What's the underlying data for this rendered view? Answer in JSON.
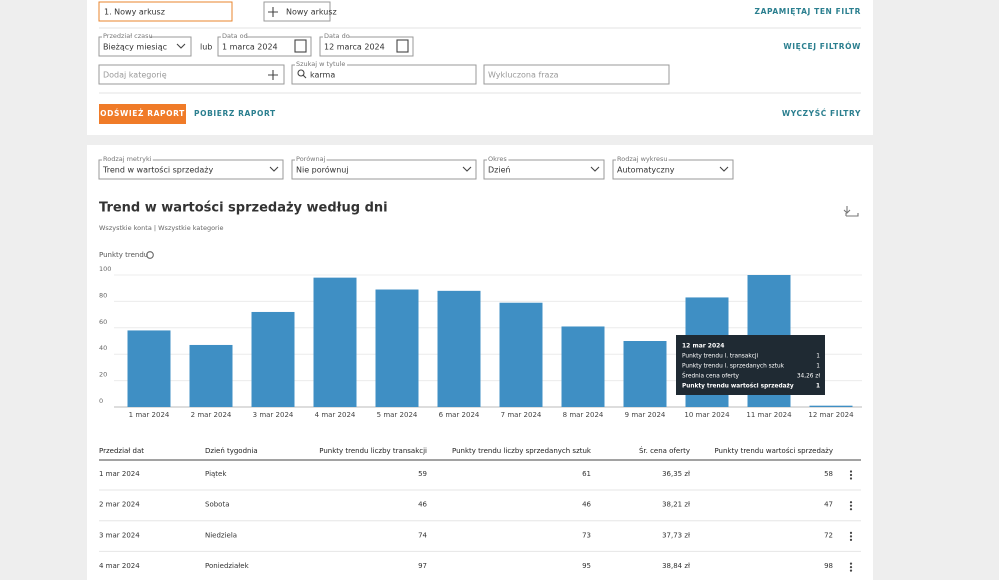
{
  "filters": {
    "sheet_name": "1. Nowy arkusz",
    "new_sheet": "Nowy arkusz",
    "save_filter": "ZAPAMIĘTAJ TEN FILTR",
    "period_label": "Przedział czasu",
    "period": "Bieżący miesiąc",
    "or": "lub",
    "date_from_label": "Data od",
    "date_from": "1 marca 2024",
    "date_to_label": "Data do",
    "date_to": "12 marca 2024",
    "more_filters": "WIĘCEJ FILTRÓW",
    "category_placeholder": "Dodaj kategorię",
    "search_label": "Szukaj w tytule",
    "search": "karma",
    "excluded_placeholder": "Wykluczona fraza",
    "refresh": "ODŚWIEŻ RAPORT",
    "download": "POBIERZ RAPORT",
    "clear": "WYCZYŚĆ FILTRY"
  },
  "settings": [
    {
      "label": "Rodzaj metryki",
      "value": "Trend w wartości sprzedaży"
    },
    {
      "label": "Porównaj",
      "value": "Nie porównuj"
    },
    {
      "label": "Okres",
      "value": "Dzień"
    },
    {
      "label": "Rodzaj wykresu",
      "value": "Automatyczny"
    }
  ],
  "chart_data": {
    "type": "bar",
    "title": "Trend w wartości sprzedaży według dni",
    "subtitle": "Wszystkie konta | Wszystkie kategorie",
    "y_label": "Punkty trendu",
    "categories": [
      "1 mar 2024",
      "2 mar 2024",
      "3 mar 2024",
      "4 mar 2024",
      "5 mar 2024",
      "6 mar 2024",
      "7 mar 2024",
      "8 mar 2024",
      "9 mar 2024",
      "10 mar 2024",
      "11 mar 2024",
      "12 mar 2024"
    ],
    "values": [
      58,
      47,
      72,
      98,
      89,
      88,
      79,
      61,
      50,
      83,
      100,
      1
    ],
    "color": "#3f8fc4",
    "ylim": [
      0,
      100
    ],
    "yticks": [
      0,
      20,
      40,
      60,
      80,
      100
    ],
    "grid": true,
    "tooltip": {
      "title": "12 mar 2024",
      "rows": [
        {
          "label": "Punkty trendu l. transakcji",
          "value": 1
        },
        {
          "label": "Punkty trendu l. sprzedanych sztuk",
          "value": 1
        },
        {
          "label": "Średnia cena oferty",
          "value": "34,26 zł"
        },
        {
          "label": "Punkty trendu wartości sprzedaży",
          "value": 1
        }
      ]
    }
  },
  "table": {
    "headers": [
      "Przedział dat",
      "Dzień tygodnia",
      "Punkty trendu liczby transakcji",
      "Punkty trendu liczby sprzedanych sztuk",
      "Śr. cena oferty",
      "Punkty trendu wartości sprzedaży"
    ],
    "rows": [
      [
        "1 mar 2024",
        "Piątek",
        59,
        61,
        "36,35 zł",
        58
      ],
      [
        "2 mar 2024",
        "Sobota",
        46,
        46,
        "38,21 zł",
        47
      ],
      [
        "3 mar 2024",
        "Niedziela",
        74,
        73,
        "37,73 zł",
        72
      ],
      [
        "4 mar 2024",
        "Poniedziałek",
        97,
        95,
        "38,84 zł",
        98
      ]
    ]
  }
}
